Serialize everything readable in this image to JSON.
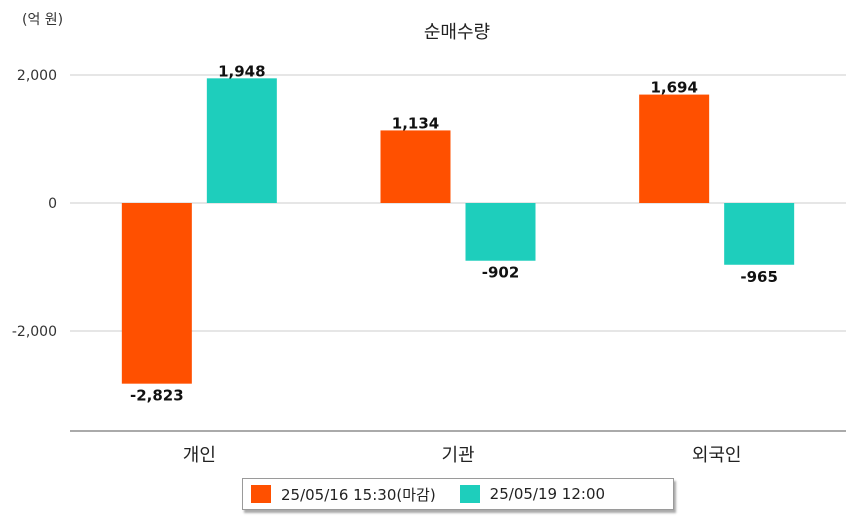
{
  "chart_data": {
    "type": "bar",
    "title": "순매수량",
    "unit_label": "(억 원)",
    "categories": [
      "개인",
      "기관",
      "외국인"
    ],
    "series": [
      {
        "name": "25/05/16 15:30(마감)",
        "color": "#FF5000",
        "values": [
          -2823,
          1134,
          1694
        ],
        "labels": [
          "-2,823",
          "1,134",
          "1,694"
        ]
      },
      {
        "name": "25/05/19 12:00",
        "color": "#1ECEBC",
        "values": [
          1948,
          -902,
          -965
        ],
        "labels": [
          "1,948",
          "-902",
          "-965"
        ]
      }
    ],
    "yticks": [
      2000,
      0,
      -2000
    ],
    "ytick_labels": [
      "2,000",
      "0",
      "-2,000"
    ],
    "ylim": [
      -3550,
      2450
    ],
    "grid": true,
    "legend_position": "bottom"
  }
}
